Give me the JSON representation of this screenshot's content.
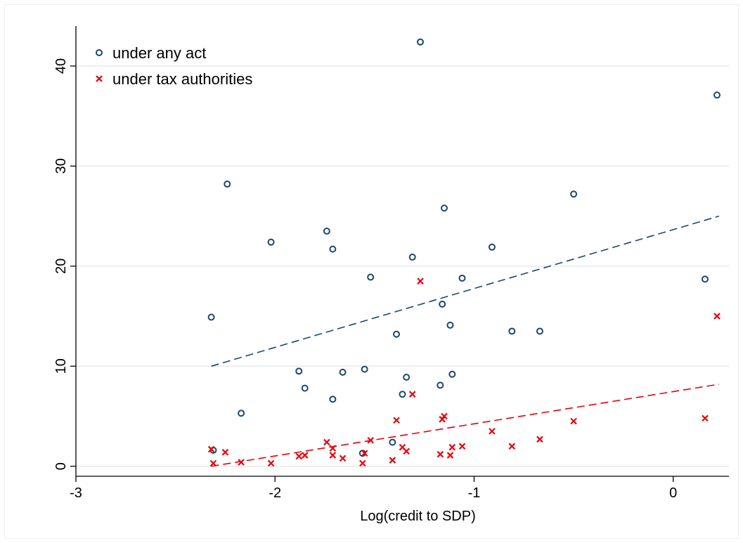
{
  "chart_data": {
    "type": "scatter",
    "title": "",
    "xlabel": "Log(credit to SDP)",
    "ylabel": "",
    "xlim": [
      -3.0,
      0.28
    ],
    "ylim": [
      -1.0,
      44
    ],
    "xticks": [
      -3,
      -2,
      -1,
      0
    ],
    "yticks": [
      0,
      10,
      20,
      30,
      40
    ],
    "grid": "horizontal",
    "legend_position": "top-left",
    "colors": {
      "any": "#1a476f",
      "tax": "#e8000b",
      "grid": "#e4eaee"
    },
    "series": [
      {
        "name": "under any act",
        "marker": "circle",
        "points": [
          [
            -2.32,
            14.9
          ],
          [
            -2.31,
            1.6
          ],
          [
            -2.24,
            28.2
          ],
          [
            -2.17,
            5.3
          ],
          [
            -2.02,
            22.4
          ],
          [
            -1.88,
            9.5
          ],
          [
            -1.85,
            7.8
          ],
          [
            -1.74,
            23.5
          ],
          [
            -1.71,
            21.7
          ],
          [
            -1.71,
            6.7
          ],
          [
            -1.66,
            9.4
          ],
          [
            -1.56,
            1.3
          ],
          [
            -1.55,
            9.7
          ],
          [
            -1.52,
            18.9
          ],
          [
            -1.41,
            2.4
          ],
          [
            -1.39,
            13.2
          ],
          [
            -1.36,
            7.2
          ],
          [
            -1.34,
            8.9
          ],
          [
            -1.31,
            20.9
          ],
          [
            -1.27,
            42.4
          ],
          [
            -1.17,
            8.1
          ],
          [
            -1.16,
            16.2
          ],
          [
            -1.15,
            25.8
          ],
          [
            -1.12,
            14.1
          ],
          [
            -1.11,
            9.2
          ],
          [
            -1.06,
            18.8
          ],
          [
            -0.91,
            21.9
          ],
          [
            -0.81,
            13.5
          ],
          [
            -0.67,
            13.5
          ],
          [
            -0.5,
            27.2
          ],
          [
            0.16,
            18.7
          ],
          [
            0.22,
            37.1
          ]
        ]
      },
      {
        "name": "under tax authorities",
        "marker": "x",
        "points": [
          [
            -2.32,
            1.7
          ],
          [
            -2.31,
            0.3
          ],
          [
            -2.25,
            1.4
          ],
          [
            -2.17,
            0.4
          ],
          [
            -2.02,
            0.3
          ],
          [
            -1.88,
            1.0
          ],
          [
            -1.85,
            1.1
          ],
          [
            -1.74,
            2.4
          ],
          [
            -1.71,
            1.8
          ],
          [
            -1.71,
            1.1
          ],
          [
            -1.66,
            0.8
          ],
          [
            -1.56,
            0.3
          ],
          [
            -1.55,
            1.3
          ],
          [
            -1.52,
            2.6
          ],
          [
            -1.41,
            0.6
          ],
          [
            -1.39,
            4.6
          ],
          [
            -1.36,
            1.9
          ],
          [
            -1.34,
            1.5
          ],
          [
            -1.31,
            7.2
          ],
          [
            -1.27,
            18.5
          ],
          [
            -1.17,
            1.2
          ],
          [
            -1.16,
            4.7
          ],
          [
            -1.15,
            5.0
          ],
          [
            -1.12,
            1.1
          ],
          [
            -1.11,
            1.9
          ],
          [
            -1.06,
            2.0
          ],
          [
            -0.91,
            3.5
          ],
          [
            -0.81,
            2.0
          ],
          [
            -0.67,
            2.7
          ],
          [
            -0.5,
            4.5
          ],
          [
            0.16,
            4.8
          ],
          [
            0.22,
            15.0
          ]
        ]
      }
    ],
    "fit_lines": [
      {
        "series": "under any act",
        "x": [
          -2.32,
          0.23
        ],
        "y": [
          10.0,
          25.0
        ]
      },
      {
        "series": "under tax authorities",
        "x": [
          -2.32,
          0.23
        ],
        "y": [
          0.0,
          8.2
        ]
      }
    ]
  }
}
